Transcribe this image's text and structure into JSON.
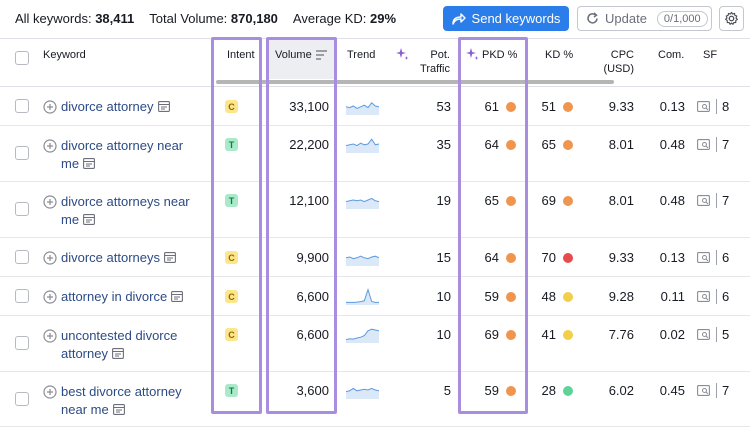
{
  "summary": {
    "all_keywords_label": "All keywords:",
    "all_keywords_value": "38,411",
    "total_volume_label": "Total Volume:",
    "total_volume_value": "870,180",
    "avg_kd_label": "Average KD:",
    "avg_kd_value": "29%"
  },
  "toolbar": {
    "send_label": "Send keywords",
    "update_label": "Update",
    "update_count": "0/1,000"
  },
  "columns": {
    "keyword": "Keyword",
    "intent": "Intent",
    "volume": "Volume",
    "trend": "Trend",
    "pot_traffic_1": "Pot.",
    "pot_traffic_2": "Traffic",
    "pkd": "PKD %",
    "kd": "KD %",
    "cpc_1": "CPC",
    "cpc_2": "(USD)",
    "com": "Com.",
    "sf": "SF"
  },
  "colors": {
    "orange": "#f0954e",
    "red": "#e74c4c",
    "yellow": "#f2cf4a",
    "green": "#5fd49a"
  },
  "rows": [
    {
      "line1": "divorce attorney",
      "line2": "",
      "intent": "C",
      "volume": "33,100",
      "pot": "53",
      "pkd": "61",
      "pkd_color": "orange",
      "kd": "51",
      "kd_color": "orange",
      "cpc": "9.33",
      "com": "0.13",
      "sf": "8",
      "trend": [
        0.55,
        0.6,
        0.5,
        0.65,
        0.55,
        0.45,
        0.6,
        0.3,
        0.5,
        0.55
      ]
    },
    {
      "line1": "divorce attorney near",
      "line2": "me",
      "intent": "T",
      "volume": "22,200",
      "pot": "35",
      "pkd": "64",
      "pkd_color": "orange",
      "kd": "65",
      "kd_color": "orange",
      "cpc": "8.01",
      "com": "0.48",
      "sf": "7",
      "trend": [
        0.6,
        0.55,
        0.5,
        0.6,
        0.45,
        0.55,
        0.5,
        0.2,
        0.55,
        0.5
      ]
    },
    {
      "line1": "divorce attorneys near",
      "line2": "me",
      "intent": "T",
      "volume": "12,100",
      "pot": "19",
      "pkd": "65",
      "pkd_color": "orange",
      "kd": "69",
      "kd_color": "orange",
      "cpc": "8.01",
      "com": "0.48",
      "sf": "7",
      "trend": [
        0.6,
        0.55,
        0.5,
        0.55,
        0.5,
        0.6,
        0.5,
        0.4,
        0.55,
        0.6
      ]
    },
    {
      "line1": "divorce attorneys",
      "line2": "",
      "intent": "C",
      "volume": "9,900",
      "pot": "15",
      "pkd": "64",
      "pkd_color": "orange",
      "kd": "70",
      "kd_color": "red",
      "cpc": "9.33",
      "com": "0.13",
      "sf": "6",
      "trend": [
        0.55,
        0.5,
        0.6,
        0.55,
        0.45,
        0.55,
        0.6,
        0.5,
        0.45,
        0.55
      ]
    },
    {
      "line1": "attorney in divorce",
      "line2": "",
      "intent": "C",
      "volume": "6,600",
      "pot": "10",
      "pkd": "59",
      "pkd_color": "orange",
      "kd": "48",
      "kd_color": "yellow",
      "cpc": "9.28",
      "com": "0.11",
      "sf": "6",
      "trend": [
        0.9,
        0.9,
        0.9,
        0.88,
        0.85,
        0.8,
        0.1,
        0.85,
        0.9,
        0.9
      ]
    },
    {
      "line1": "uncontested divorce",
      "line2": "attorney",
      "intent": "C",
      "volume": "6,600",
      "pot": "10",
      "pkd": "69",
      "pkd_color": "orange",
      "kd": "41",
      "kd_color": "yellow",
      "cpc": "7.76",
      "com": "0.02",
      "sf": "5",
      "trend": [
        0.85,
        0.8,
        0.82,
        0.75,
        0.7,
        0.6,
        0.3,
        0.2,
        0.25,
        0.3
      ]
    },
    {
      "line1": "best divorce attorney",
      "line2": "near me",
      "intent": "T",
      "volume": "3,600",
      "pot": "5",
      "pkd": "59",
      "pkd_color": "orange",
      "kd": "28",
      "kd_color": "green",
      "cpc": "6.02",
      "com": "0.45",
      "sf": "7",
      "trend": [
        0.6,
        0.55,
        0.4,
        0.55,
        0.5,
        0.45,
        0.5,
        0.4,
        0.5,
        0.55
      ]
    }
  ]
}
